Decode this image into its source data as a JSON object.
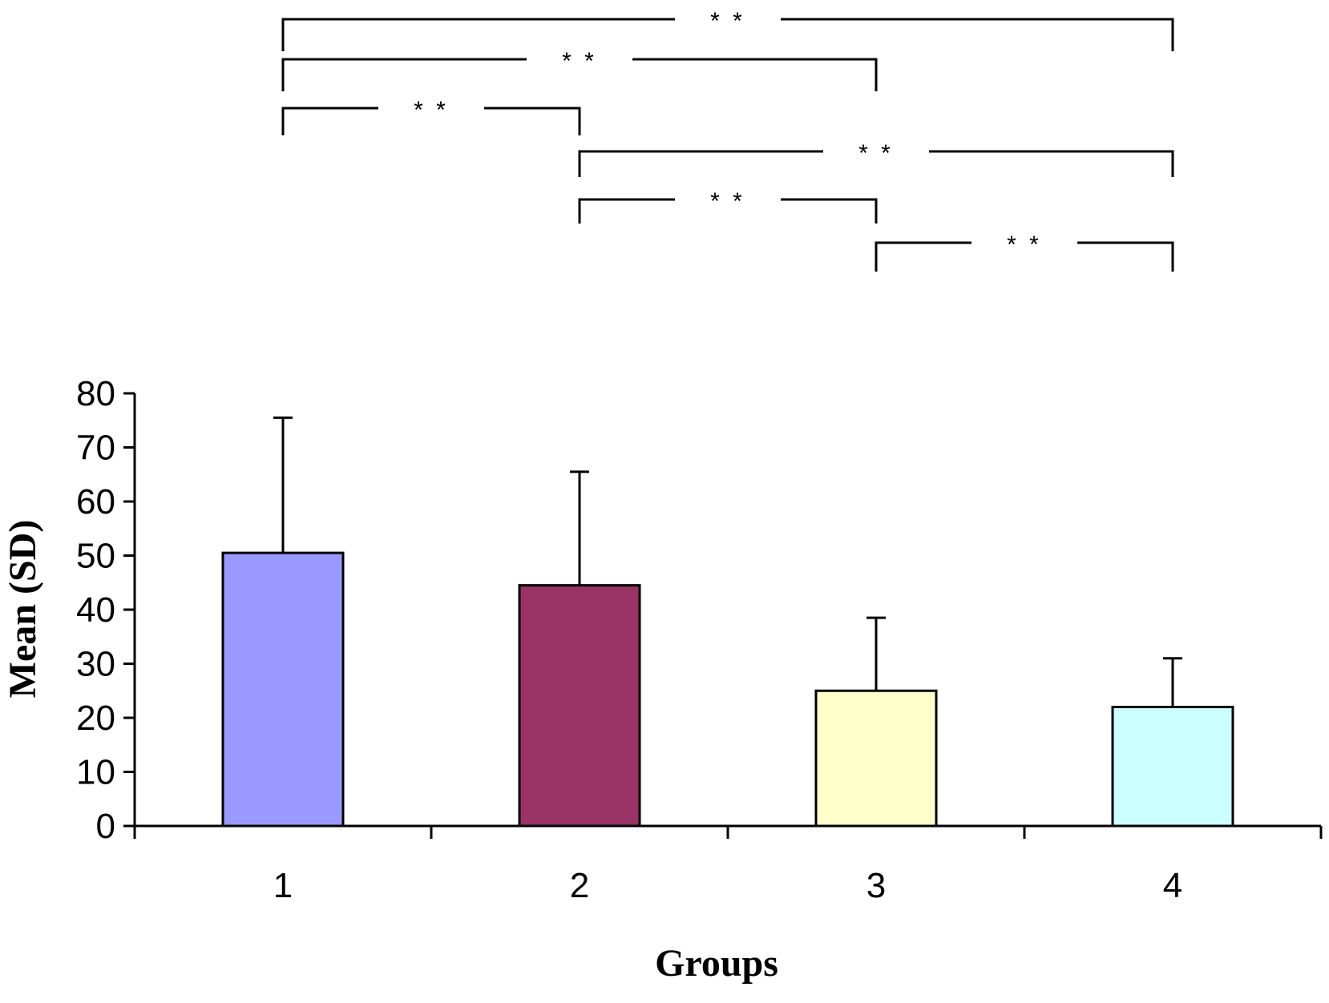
{
  "chart_data": {
    "type": "bar",
    "title": "",
    "xlabel": "Groups",
    "ylabel": "Mean (SD)",
    "ylim": [
      0,
      80
    ],
    "yticks": [
      0,
      10,
      20,
      30,
      40,
      50,
      60,
      70,
      80
    ],
    "categories": [
      "1",
      "2",
      "3",
      "4"
    ],
    "values": [
      50.5,
      44.5,
      25,
      22
    ],
    "error_upper": [
      75.5,
      65.5,
      38.5,
      31
    ],
    "bar_colors": [
      "#9999ff",
      "#993366",
      "#ffffcc",
      "#ccffff"
    ],
    "grid": false,
    "legend": "none",
    "significance": [
      {
        "from": "1",
        "to": "4",
        "label": "* *"
      },
      {
        "from": "1",
        "to": "3",
        "label": "* *"
      },
      {
        "from": "1",
        "to": "2",
        "label": "* *"
      },
      {
        "from": "2",
        "to": "4",
        "label": "* *"
      },
      {
        "from": "2",
        "to": "3",
        "label": "* *"
      },
      {
        "from": "3",
        "to": "4",
        "label": "* *"
      }
    ]
  }
}
